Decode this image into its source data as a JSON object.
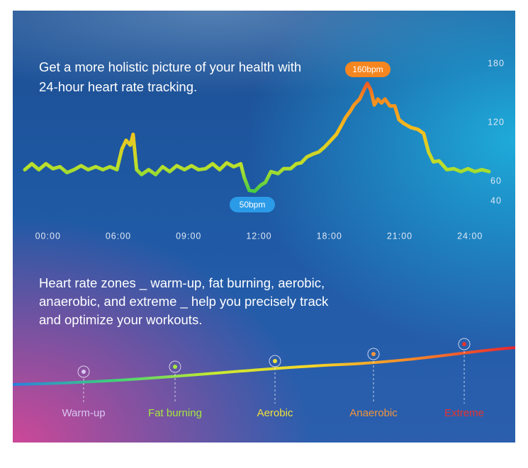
{
  "intro": {
    "lines": [
      "Get a more holistic picture of your health with",
      "24-hour heart rate tracking."
    ]
  },
  "chart_data": {
    "type": "line",
    "x": [
      -0.33,
      -0.23,
      -0.13,
      -0.03,
      0.07,
      0.17,
      0.27,
      0.37,
      0.47,
      0.57,
      0.68,
      0.78,
      0.88,
      0.98,
      1.05,
      1.11,
      1.17,
      1.21,
      1.26,
      1.33,
      1.43,
      1.53,
      1.63,
      1.73,
      1.83,
      1.94,
      2.04,
      2.14,
      2.24,
      2.34,
      2.44,
      2.54,
      2.64,
      2.74,
      2.79,
      2.86,
      2.94,
      3.02,
      3.09,
      3.17,
      3.27,
      3.35,
      3.45,
      3.53,
      3.6,
      3.68,
      3.77,
      3.85,
      3.93,
      4.01,
      4.1,
      4.17,
      4.23,
      4.3,
      4.35,
      4.43,
      4.49,
      4.54,
      4.59,
      4.64,
      4.69,
      4.74,
      4.79,
      4.86,
      4.93,
      4.99,
      5.06,
      5.16,
      5.26,
      5.34,
      5.41,
      5.48,
      5.56,
      5.67,
      5.77,
      5.87,
      5.97,
      6.07,
      6.17,
      6.27
    ],
    "values": [
      72,
      78,
      72,
      78,
      73,
      75,
      69,
      72,
      76,
      72,
      75,
      72,
      75,
      72,
      93,
      102,
      97,
      108,
      72,
      67,
      72,
      67,
      75,
      70,
      76,
      72,
      76,
      72,
      73,
      78,
      72,
      79,
      75,
      78,
      64,
      51,
      50,
      56,
      59,
      70,
      68,
      73,
      73,
      78,
      79,
      85,
      88,
      90,
      95,
      101,
      108,
      117,
      125,
      132,
      138,
      144,
      153,
      160,
      153,
      138,
      144,
      140,
      144,
      137,
      137,
      123,
      119,
      115,
      113,
      109,
      90,
      80,
      81,
      72,
      73,
      70,
      73,
      70,
      72,
      70
    ],
    "colors": [
      "#1fc44a",
      "#b8e02c",
      "#f4c21e",
      "#f58a20",
      "#e81e2a"
    ],
    "xlim": [
      -0.33,
      6.27
    ],
    "xticks": [
      {
        "value": 0,
        "label": "00:00"
      },
      {
        "value": 1,
        "label": "06:00"
      },
      {
        "value": 2,
        "label": "09:00"
      },
      {
        "value": 3,
        "label": "12:00"
      },
      {
        "value": 4,
        "label": "18:00"
      },
      {
        "value": 5,
        "label": "21:00"
      },
      {
        "value": 6,
        "label": "24:00"
      }
    ],
    "ylim": [
      40,
      180
    ],
    "yticks": [
      40,
      60,
      120,
      180
    ],
    "annotations": [
      {
        "text": "160bpm",
        "color": "#f5861f"
      },
      {
        "text": "50bpm",
        "color": "#2b9be8"
      }
    ]
  },
  "zones_text": {
    "lines": [
      "Heart rate zones _ warm-up, fat burning, aerobic,",
      "anaerobic, and extreme _ help you precisely track",
      "and optimize your workouts."
    ]
  },
  "zones": [
    {
      "label": "Warm-up",
      "color": "#d8c8f2"
    },
    {
      "label": "Fat burning",
      "color": "#a6e83c"
    },
    {
      "label": "Aerobic",
      "color": "#f2e13a"
    },
    {
      "label": "Anaerobic",
      "color": "#f3953a"
    },
    {
      "label": "Extreme",
      "color": "#e8322e"
    }
  ]
}
